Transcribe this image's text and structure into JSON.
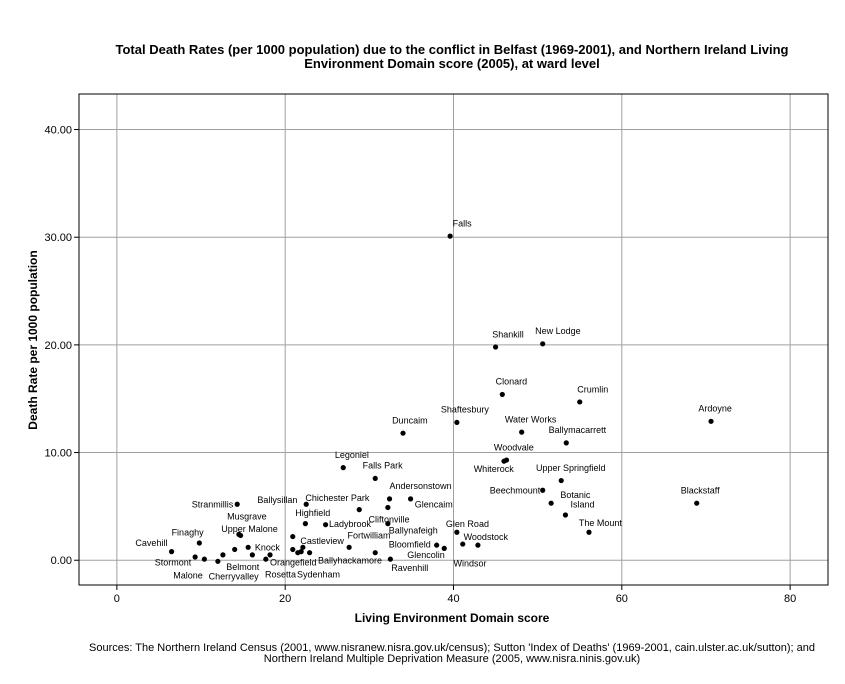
{
  "chart_data": {
    "type": "scatter",
    "title_lines": [
      "Total Death Rates (per 1000 population) due to the conflict in Belfast (1969-2001), and Northern Ireland Living",
      "Environment Domain score (2005), at ward level"
    ],
    "xlabel": "Living Environment Domain score",
    "ylabel": "Death Rate per 1000 population",
    "xlim": [
      -4.5,
      84.5
    ],
    "ylim": [
      -2.3,
      43.3
    ],
    "x_ticks": [
      0,
      20,
      40,
      60,
      80
    ],
    "x_tick_labels": [
      "0",
      "20",
      "40",
      "60",
      "80"
    ],
    "y_ticks": [
      0,
      10,
      20,
      30,
      40
    ],
    "y_tick_labels": [
      "0.00",
      "10.00",
      "20.00",
      "30.00",
      "40.00"
    ],
    "grid": true,
    "point_color": "#000000",
    "points": [
      {
        "name": "Falls",
        "x": 39.6,
        "y": 30.1,
        "lx": 39.9,
        "ly": 31.0
      },
      {
        "name": "Shankill",
        "x": 45.0,
        "y": 19.8,
        "lx": 44.6,
        "ly": 20.7
      },
      {
        "name": "New Lodge",
        "x": 50.6,
        "y": 20.1,
        "lx": 49.7,
        "ly": 21.0
      },
      {
        "name": "Clonard",
        "x": 45.8,
        "y": 15.4,
        "lx": 45.0,
        "ly": 16.3
      },
      {
        "name": "Crumlin",
        "x": 55.0,
        "y": 14.7,
        "lx": 54.7,
        "ly": 15.6
      },
      {
        "name": "Ardoyne",
        "x": 70.6,
        "y": 12.9,
        "lx": 69.1,
        "ly": 13.8
      },
      {
        "name": "Shaftesbury",
        "x": 40.4,
        "y": 12.8,
        "lx": 38.5,
        "ly": 13.7
      },
      {
        "name": "Water Works",
        "x": 48.1,
        "y": 11.9,
        "lx": 46.1,
        "ly": 12.8
      },
      {
        "name": "Duncaim",
        "x": 34.0,
        "y": 11.8,
        "lx": 32.7,
        "ly": 12.7
      },
      {
        "name": "Ballymacarrett",
        "x": 53.4,
        "y": 10.9,
        "lx": 51.3,
        "ly": 11.8
      },
      {
        "name": "Woodvale",
        "x": 46.3,
        "y": 9.3,
        "lx": 44.8,
        "ly": 10.2
      },
      {
        "name": "Whiterock",
        "x": 46.0,
        "y": 9.2,
        "lx": 42.4,
        "ly": 8.2
      },
      {
        "name": "Legoniel",
        "x": 26.9,
        "y": 8.6,
        "lx": 25.9,
        "ly": 9.5
      },
      {
        "name": "Falls Park",
        "x": 30.7,
        "y": 7.6,
        "lx": 29.2,
        "ly": 8.5
      },
      {
        "name": "Upper Springfield",
        "x": 52.8,
        "y": 7.4,
        "lx": 49.8,
        "ly": 8.3
      },
      {
        "name": "Beechmount",
        "x": 50.6,
        "y": 6.5,
        "lx": 44.3,
        "ly": 6.2
      },
      {
        "name": "Blackstaff",
        "x": 68.9,
        "y": 5.3,
        "lx": 67.0,
        "ly": 6.2
      },
      {
        "name": "Andersonstown",
        "x": 32.4,
        "y": 5.7,
        "lx": 32.4,
        "ly": 6.6
      },
      {
        "name": "Botanic",
        "x": 51.6,
        "y": 5.3,
        "lx": 52.7,
        "ly": 5.8
      },
      {
        "name": "Chichester Park",
        "x": 28.8,
        "y": 4.7,
        "lx": 22.4,
        "ly": 5.5
      },
      {
        "name": "Ballysillan",
        "x": 22.5,
        "y": 5.2,
        "lx": 16.7,
        "ly": 5.3
      },
      {
        "name": "Glencaim",
        "x": 34.9,
        "y": 5.7,
        "lx": 35.4,
        "ly": 4.9
      },
      {
        "name": "Stranmillis",
        "x": 14.3,
        "y": 5.2,
        "lx": 8.9,
        "ly": 4.9
      },
      {
        "name": "Island",
        "x": 53.3,
        "y": 4.2,
        "lx": 53.9,
        "ly": 4.9
      },
      {
        "name": "Cliftonville",
        "x": 32.2,
        "y": 4.9,
        "lx": 29.9,
        "ly": 3.5
      },
      {
        "name": "Highfield",
        "x": 22.4,
        "y": 3.4,
        "lx": 21.2,
        "ly": 4.1
      },
      {
        "name": "Musgrave",
        "x": 14.5,
        "y": 2.4,
        "lx": 13.1,
        "ly": 3.8
      },
      {
        "name": "Ladybrook",
        "x": 24.8,
        "y": 3.3,
        "lx": 25.2,
        "ly": 3.1
      },
      {
        "name": "The Mount",
        "x": 56.1,
        "y": 2.6,
        "lx": 54.9,
        "ly": 3.2
      },
      {
        "name": "Upper Malone",
        "x": 14.7,
        "y": 2.3,
        "lx": 12.4,
        "ly": 2.6
      },
      {
        "name": "Glen Road",
        "x": 40.4,
        "y": 2.6,
        "lx": 39.1,
        "ly": 3.1
      },
      {
        "name": "Ballynafeigh",
        "x": 32.2,
        "y": 3.4,
        "lx": 32.3,
        "ly": 2.5
      },
      {
        "name": "Fortwilliam",
        "x": 27.6,
        "y": 1.2,
        "lx": 27.4,
        "ly": 2.0
      },
      {
        "name": "Woodstock",
        "x": 42.9,
        "y": 1.4,
        "lx": 41.2,
        "ly": 1.9
      },
      {
        "name": "Finaghy",
        "x": 9.8,
        "y": 1.6,
        "lx": 6.5,
        "ly": 2.3
      },
      {
        "name": "Castleview",
        "x": 20.9,
        "y": 2.2,
        "lx": 21.8,
        "ly": 1.5
      },
      {
        "name": "Bloomfield",
        "x": 38.0,
        "y": 1.4,
        "lx": 32.3,
        "ly": 1.2
      },
      {
        "name": "Cavehill",
        "x": 6.5,
        "y": 0.8,
        "lx": 2.2,
        "ly": 1.3
      },
      {
        "name": "Knock",
        "x": 15.6,
        "y": 1.2,
        "lx": 16.4,
        "ly": 0.9
      },
      {
        "name": "Glencolin",
        "x": 38.9,
        "y": 1.1,
        "lx": 34.5,
        "ly": 0.2
      },
      {
        "name": "Orangefield",
        "x": 18.2,
        "y": 0.5,
        "lx": 18.2,
        "ly": -0.5
      },
      {
        "name": "Ballyhackamore",
        "x": 30.7,
        "y": 0.7,
        "lx": 23.9,
        "ly": -0.3
      },
      {
        "name": "Stormont",
        "x": 9.3,
        "y": 0.3,
        "lx": 4.5,
        "ly": -0.5
      },
      {
        "name": "Windsor",
        "x": 41.1,
        "y": 1.5,
        "lx": 40.0,
        "ly": -0.6
      },
      {
        "name": "Belmont",
        "x": 12.6,
        "y": 0.5,
        "lx": 13.0,
        "ly": -0.9
      },
      {
        "name": "Ravenhill",
        "x": 32.5,
        "y": 0.1,
        "lx": 32.6,
        "ly": -1.0
      },
      {
        "name": "Malone",
        "x": 10.4,
        "y": 0.1,
        "lx": 6.7,
        "ly": -1.7
      },
      {
        "name": "Cherryvalley",
        "x": 12.0,
        "y": -0.1,
        "lx": 10.9,
        "ly": -1.8
      },
      {
        "name": "Rosetta",
        "x": 17.7,
        "y": 0.1,
        "lx": 17.6,
        "ly": -1.6
      },
      {
        "name": "Sydenham",
        "x": 21.9,
        "y": 0.8,
        "lx": 21.4,
        "ly": -1.6
      },
      {
        "name": "",
        "x": 20.9,
        "y": 1.0,
        "lx": 0,
        "ly": 0
      },
      {
        "name": "",
        "x": 21.5,
        "y": 0.7,
        "lx": 0,
        "ly": 0
      },
      {
        "name": "",
        "x": 22.1,
        "y": 1.2,
        "lx": 0,
        "ly": 0
      },
      {
        "name": "",
        "x": 22.9,
        "y": 0.7,
        "lx": 0,
        "ly": 0
      },
      {
        "name": "",
        "x": 16.1,
        "y": 0.5,
        "lx": 0,
        "ly": 0
      },
      {
        "name": "",
        "x": 14.0,
        "y": 1.0,
        "lx": 0,
        "ly": 0
      }
    ],
    "source_lines": [
      "Sources: The Northern Ireland Census (2001, www.nisranew.nisra.gov.uk/census); Sutton 'Index of Deaths' (1969-2001, cain.ulster.ac.uk/sutton); and",
      "Northern Ireland Multiple Deprivation Measure (2005, www.nisra.ninis.gov.uk)"
    ]
  }
}
